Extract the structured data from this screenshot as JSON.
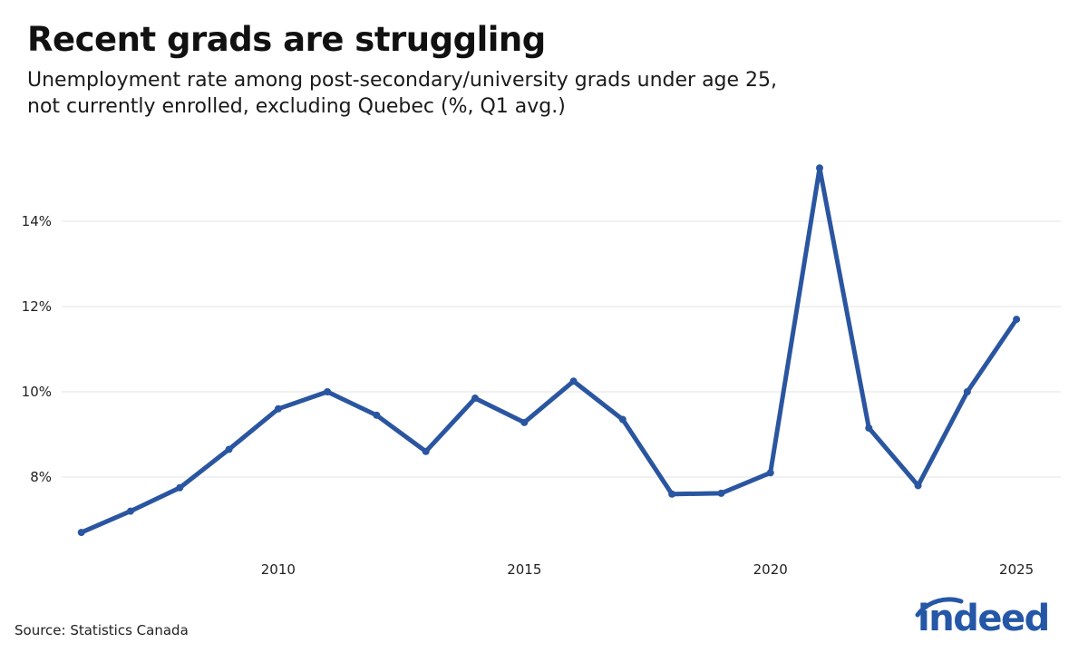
{
  "chart_data": {
    "type": "line",
    "title": "Recent grads are struggling",
    "subtitle_lines": [
      "Unemployment rate among post-secondary/university grads under age 25,",
      "not currently enrolled, excluding Quebec (%, Q1 avg.)"
    ],
    "x": [
      2006,
      2007,
      2008,
      2009,
      2010,
      2011,
      2012,
      2013,
      2014,
      2015,
      2016,
      2017,
      2018,
      2019,
      2020,
      2021,
      2022,
      2023,
      2024,
      2025
    ],
    "series": [
      {
        "values": [
          6.7,
          7.2,
          7.75,
          8.65,
          9.6,
          10.0,
          9.45,
          8.6,
          9.85,
          9.28,
          10.25,
          9.35,
          7.6,
          7.62,
          8.1,
          15.25,
          9.15,
          7.8,
          10.0,
          11.7
        ],
        "color": "#2a55a0"
      }
    ],
    "xlim": [
      2005.6,
      2025.9
    ],
    "ylim": [
      6.0,
      16.0
    ],
    "x_ticks": [
      2010,
      2015,
      2020,
      2025
    ],
    "x_tick_labels": [
      "2010",
      "2015",
      "2020",
      "2025"
    ],
    "y_ticks": [
      8,
      10,
      12,
      14
    ],
    "y_tick_labels": [
      "8%",
      "10%",
      "12%",
      "14%"
    ],
    "grid": "horizontal",
    "legend": "none",
    "xlabel": "",
    "ylabel": ""
  },
  "source": "Source: Statistics Canada",
  "brand": {
    "name": "indeed",
    "color": "#2557a7"
  }
}
